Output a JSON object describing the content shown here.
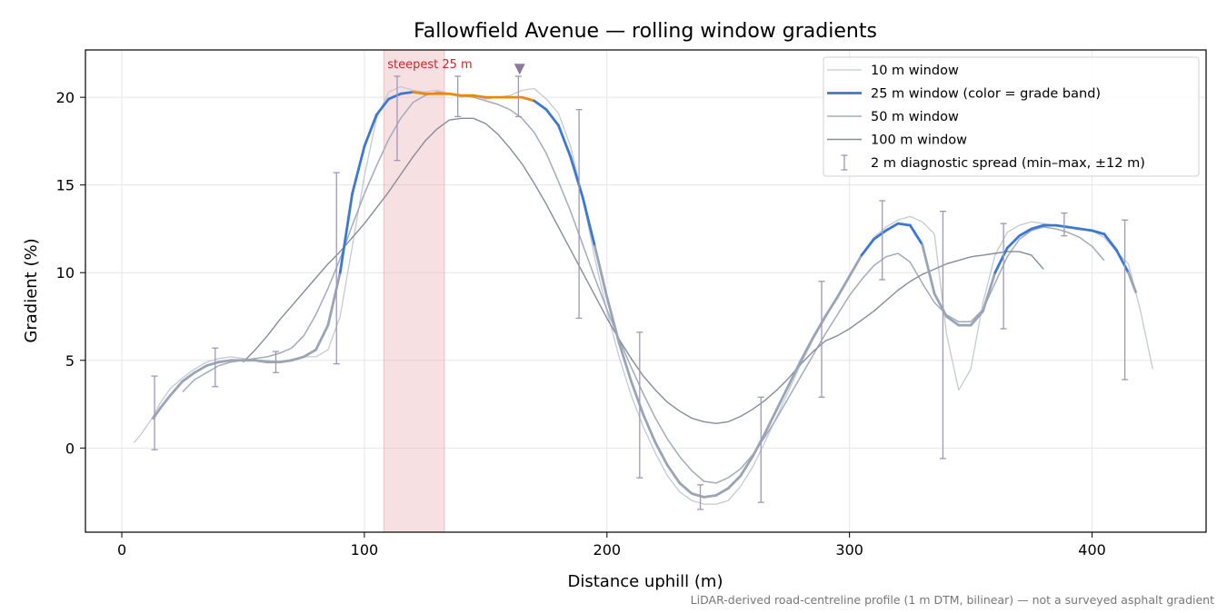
{
  "chart_data": {
    "type": "line",
    "title": "Fallowfield Avenue — rolling window gradients",
    "xlabel": "Distance uphill (m)",
    "ylabel": "Gradient (%)",
    "xlim": [
      -15,
      447
    ],
    "ylim": [
      -4.8,
      22.7
    ],
    "xticks": [
      0,
      100,
      200,
      300,
      400
    ],
    "yticks": [
      0,
      5,
      10,
      15,
      20
    ],
    "grid": true,
    "legend_position": "top-right",
    "footnote": "LiDAR-derived road-centreline profile (1 m DTM, bilinear) — not a surveyed asphalt gradient",
    "highlight": {
      "label": "steepest 25 m",
      "x_start": 108,
      "x_end": 133,
      "color": "#e8a0a8"
    },
    "marker": {
      "x": 164,
      "y": 21.6,
      "color": "#8a7aa0"
    },
    "series": [
      {
        "name": "10 m window",
        "color": "#c5c9d3",
        "x": [
          5,
          8,
          12,
          16,
          20,
          25,
          30,
          35,
          40,
          45,
          50,
          55,
          60,
          65,
          70,
          75,
          80,
          85,
          90,
          95,
          100,
          105,
          110,
          115,
          120,
          125,
          130,
          135,
          140,
          145,
          150,
          155,
          160,
          165,
          170,
          175,
          180,
          185,
          190,
          195,
          200,
          205,
          210,
          215,
          220,
          225,
          230,
          235,
          240,
          245,
          250,
          255,
          260,
          265,
          270,
          275,
          280,
          285,
          290,
          295,
          300,
          305,
          310,
          315,
          320,
          325,
          330,
          335,
          340,
          345,
          350,
          355,
          360,
          365,
          370,
          375,
          380,
          385,
          390,
          395,
          400,
          405,
          410,
          415,
          420,
          425
        ],
        "y": [
          0.3,
          0.8,
          1.6,
          2.6,
          3.4,
          4.0,
          4.5,
          4.9,
          5.1,
          5.2,
          5.1,
          5.0,
          5.0,
          4.9,
          5.0,
          5.2,
          5.2,
          5.6,
          7.5,
          11.5,
          15.5,
          18.8,
          20.3,
          20.6,
          20.4,
          20.3,
          20.4,
          20.2,
          20.0,
          20.1,
          19.9,
          20.0,
          20.1,
          20.4,
          20.5,
          19.9,
          19.1,
          17.2,
          14.3,
          10.8,
          7.8,
          5.2,
          3.0,
          1.2,
          -0.3,
          -1.6,
          -2.5,
          -3.0,
          -3.2,
          -3.2,
          -3.0,
          -2.2,
          -1.1,
          0.3,
          1.8,
          3.3,
          4.8,
          6.2,
          7.4,
          8.6,
          9.8,
          11.0,
          12.0,
          12.6,
          13.0,
          13.2,
          12.9,
          12.2,
          6.5,
          3.3,
          4.5,
          8.3,
          11.0,
          12.3,
          12.7,
          12.9,
          12.8,
          12.7,
          12.6,
          12.5,
          12.4,
          12.0,
          11.2,
          10.5,
          7.8,
          4.5
        ]
      },
      {
        "name": "25 m window (color = grade band)",
        "color": "#3a78d4",
        "band_color": "#e8890c",
        "band_range": [
          120.0,
          166.0
        ],
        "x": [
          13,
          16,
          20,
          25,
          30,
          35,
          40,
          45,
          50,
          55,
          60,
          65,
          70,
          75,
          80,
          85,
          90,
          95,
          100,
          105,
          110,
          115,
          120,
          125,
          130,
          135,
          140,
          145,
          150,
          155,
          160,
          165,
          170,
          175,
          180,
          185,
          190,
          195,
          200,
          205,
          210,
          215,
          220,
          225,
          230,
          235,
          240,
          245,
          250,
          255,
          260,
          265,
          270,
          275,
          280,
          285,
          290,
          295,
          300,
          305,
          310,
          315,
          320,
          325,
          330,
          335,
          340,
          345,
          350,
          355,
          360,
          365,
          370,
          375,
          380,
          385,
          390,
          395,
          400,
          405,
          410,
          415,
          418
        ],
        "y": [
          1.7,
          2.3,
          3.0,
          3.8,
          4.3,
          4.7,
          4.9,
          5.0,
          5.0,
          5.0,
          4.9,
          4.9,
          5.0,
          5.2,
          5.6,
          7.0,
          10.0,
          14.5,
          17.2,
          19.0,
          19.9,
          20.2,
          20.3,
          20.2,
          20.2,
          20.2,
          20.1,
          20.1,
          20.0,
          20.0,
          20.0,
          20.0,
          19.8,
          19.3,
          18.4,
          16.6,
          14.3,
          11.5,
          8.6,
          6.0,
          3.8,
          1.9,
          0.3,
          -1.0,
          -2.0,
          -2.6,
          -2.8,
          -2.7,
          -2.3,
          -1.6,
          -0.5,
          0.8,
          2.2,
          3.6,
          5.0,
          6.3,
          7.5,
          8.6,
          9.8,
          11.0,
          11.9,
          12.4,
          12.8,
          12.7,
          11.6,
          8.8,
          7.5,
          7.0,
          7.0,
          7.8,
          10.0,
          11.4,
          12.1,
          12.5,
          12.7,
          12.7,
          12.6,
          12.5,
          12.4,
          12.2,
          11.3,
          10.0,
          8.9
        ]
      },
      {
        "name": "50 m window",
        "color": "#a3abbb",
        "x": [
          25,
          30,
          35,
          40,
          45,
          50,
          55,
          60,
          65,
          70,
          75,
          80,
          85,
          90,
          95,
          100,
          105,
          110,
          115,
          120,
          125,
          130,
          135,
          140,
          145,
          150,
          155,
          160,
          165,
          170,
          175,
          180,
          185,
          190,
          195,
          200,
          205,
          210,
          215,
          220,
          225,
          230,
          235,
          240,
          245,
          250,
          255,
          260,
          265,
          270,
          275,
          280,
          285,
          290,
          295,
          300,
          305,
          310,
          315,
          320,
          325,
          330,
          335,
          340,
          345,
          350,
          355,
          360,
          365,
          370,
          375,
          380,
          385,
          390,
          395,
          400,
          405
        ],
        "y": [
          3.2,
          3.9,
          4.3,
          4.7,
          4.9,
          5.0,
          5.1,
          5.2,
          5.4,
          5.7,
          6.4,
          7.6,
          9.1,
          10.8,
          12.7,
          14.5,
          16.1,
          17.6,
          18.8,
          19.7,
          20.1,
          20.3,
          20.2,
          20.1,
          20.0,
          19.8,
          19.6,
          19.3,
          18.8,
          18.0,
          16.8,
          15.2,
          13.5,
          11.6,
          9.7,
          7.9,
          6.2,
          4.6,
          3.1,
          1.7,
          0.5,
          -0.5,
          -1.3,
          -1.9,
          -2.0,
          -1.7,
          -1.2,
          -0.4,
          0.6,
          1.7,
          2.9,
          4.1,
          5.3,
          6.5,
          7.6,
          8.7,
          9.6,
          10.4,
          10.9,
          11.1,
          10.6,
          9.4,
          8.3,
          7.6,
          7.2,
          7.2,
          7.9,
          9.4,
          10.9,
          11.9,
          12.4,
          12.6,
          12.5,
          12.3,
          12.0,
          11.5,
          10.7
        ]
      },
      {
        "name": "100 m window",
        "color": "#858d9b",
        "x": [
          50,
          55,
          60,
          65,
          70,
          75,
          80,
          85,
          90,
          95,
          100,
          105,
          110,
          115,
          120,
          125,
          130,
          135,
          140,
          145,
          150,
          155,
          160,
          165,
          170,
          175,
          180,
          185,
          190,
          195,
          200,
          205,
          210,
          215,
          220,
          225,
          230,
          235,
          240,
          245,
          250,
          255,
          260,
          265,
          270,
          275,
          280,
          285,
          290,
          295,
          300,
          305,
          310,
          315,
          320,
          325,
          330,
          335,
          340,
          345,
          350,
          355,
          360,
          365,
          370,
          375,
          380
        ],
        "y": [
          4.9,
          5.6,
          6.4,
          7.3,
          8.1,
          8.9,
          9.7,
          10.5,
          11.2,
          12.0,
          12.8,
          13.7,
          14.6,
          15.6,
          16.6,
          17.5,
          18.2,
          18.7,
          18.8,
          18.8,
          18.5,
          17.9,
          17.1,
          16.2,
          15.1,
          13.9,
          12.6,
          11.3,
          10.0,
          8.7,
          7.4,
          6.2,
          5.1,
          4.1,
          3.3,
          2.6,
          2.1,
          1.7,
          1.5,
          1.4,
          1.5,
          1.8,
          2.2,
          2.7,
          3.3,
          4.0,
          4.8,
          5.5,
          6.1,
          6.4,
          6.8,
          7.3,
          7.8,
          8.4,
          9.0,
          9.5,
          9.9,
          10.2,
          10.5,
          10.7,
          10.9,
          11.0,
          11.1,
          11.2,
          11.2,
          11.0,
          10.2
        ]
      }
    ],
    "errorbars": {
      "name": "2 m diagnostic spread (min–max, ±12 m)",
      "color": "#9f97b7",
      "points": [
        {
          "x": 13.5,
          "ymin": -0.1,
          "ymax": 4.1
        },
        {
          "x": 38.5,
          "ymin": 3.5,
          "ymax": 5.7
        },
        {
          "x": 63.5,
          "ymin": 4.3,
          "ymax": 5.5
        },
        {
          "x": 88.5,
          "ymin": 4.8,
          "ymax": 15.7
        },
        {
          "x": 113.5,
          "ymin": 16.4,
          "ymax": 21.2
        },
        {
          "x": 138.5,
          "ymin": 18.9,
          "ymax": 21.2
        },
        {
          "x": 163.5,
          "ymin": 18.9,
          "ymax": 21.2
        },
        {
          "x": 188.5,
          "ymin": 7.4,
          "ymax": 19.3
        },
        {
          "x": 213.5,
          "ymin": -1.7,
          "ymax": 6.6
        },
        {
          "x": 238.5,
          "ymin": -3.5,
          "ymax": -2.1
        },
        {
          "x": 263.5,
          "ymin": -3.1,
          "ymax": 2.9
        },
        {
          "x": 288.5,
          "ymin": 2.9,
          "ymax": 9.5
        },
        {
          "x": 313.5,
          "ymin": 9.6,
          "ymax": 14.1
        },
        {
          "x": 338.5,
          "ymin": -0.6,
          "ymax": 13.5
        },
        {
          "x": 363.5,
          "ymin": 6.8,
          "ymax": 12.8
        },
        {
          "x": 388.5,
          "ymin": 12.1,
          "ymax": 13.4
        },
        {
          "x": 413.5,
          "ymin": 3.9,
          "ymax": 13.0
        }
      ]
    }
  }
}
